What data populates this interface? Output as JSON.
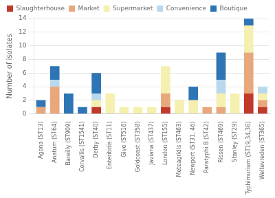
{
  "chart_data": {
    "type": "bar",
    "stacked": true,
    "categories": [
      "Agona (ST13)",
      "Anatum (ST64)",
      "Bareilly (ST909)",
      "Corvallis (ST1541)",
      "Derby (ST40)",
      "Enteritidis (ST11)",
      "Give (ST516)",
      "Goldcoast (ST358)",
      "Javiana (ST437)",
      "London (ST155)",
      "Meteagridis (ST463)",
      "Newport (ST31, 46)",
      "Paratyphi B (ST42)",
      "Rissen (ST469)",
      "Stanley (ST29)",
      "Typhimurium (ST19,34,36)",
      "Weltevreden (ST365)"
    ],
    "series": [
      {
        "name": "Slaughterhouse",
        "color": "#c0392b",
        "values": [
          0,
          0,
          0,
          0,
          1,
          0,
          0,
          0,
          0,
          1,
          0,
          0,
          0,
          0,
          0,
          3,
          1
        ]
      },
      {
        "name": "Market",
        "color": "#e8a87c",
        "values": [
          1,
          4,
          0,
          0,
          0,
          0,
          0,
          0,
          0,
          2,
          0,
          0,
          1,
          1,
          0,
          6,
          1
        ]
      },
      {
        "name": "Supermarket",
        "color": "#f5f0b0",
        "values": [
          0,
          0,
          0,
          0,
          1,
          3,
          1,
          1,
          1,
          4,
          2,
          2,
          0,
          2,
          3,
          4,
          1
        ]
      },
      {
        "name": "Convenience",
        "color": "#b8d9ed",
        "values": [
          0,
          1,
          0,
          0,
          1,
          0,
          0,
          0,
          0,
          0,
          0,
          0,
          0,
          2,
          0,
          0,
          1
        ]
      },
      {
        "name": "Boutique",
        "color": "#2e75b6",
        "values": [
          1,
          2,
          3,
          1,
          3,
          0,
          0,
          0,
          0,
          0,
          0,
          2,
          0,
          4,
          0,
          1,
          0
        ]
      }
    ],
    "ylabel": "Number of isolates",
    "ylim": [
      0,
      14
    ],
    "yticks": [
      0,
      2,
      4,
      6,
      8,
      10,
      12,
      14
    ],
    "grid": true,
    "legend": "upper left"
  }
}
